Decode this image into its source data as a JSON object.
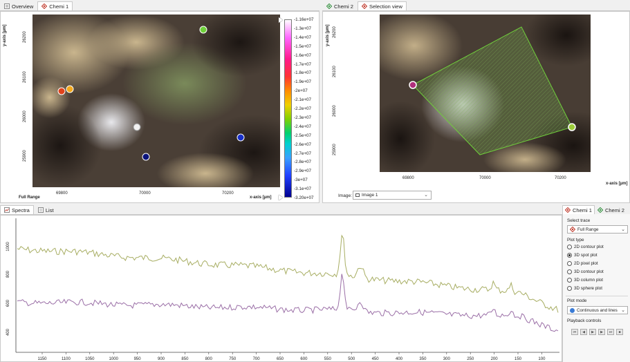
{
  "top_left": {
    "tabs": [
      {
        "label": "Overview"
      },
      {
        "label": "Chemi 1"
      }
    ],
    "y_axis_label": "y-axis [µm]",
    "x_axis_label": "x-axis [µm]",
    "y_ticks": [
      "26200",
      "26100",
      "26000",
      "25900"
    ],
    "x_ticks": [
      "69800",
      "70000",
      "70200"
    ],
    "full_range_label": "Full Range",
    "colorbar_labels": [
      "-1.16e+07",
      "-1.3e+07",
      "-1.4e+07",
      "-1.5e+07",
      "-1.6e+07",
      "-1.7e+07",
      "-1.8e+07",
      "-1.9e+07",
      "-2e+07",
      "-2.1e+07",
      "-2.2e+07",
      "-2.3e+07",
      "-2.4e+07",
      "-2.5e+07",
      "-2.6e+07",
      "-2.7e+07",
      "-2.8e+07",
      "-2.9e+07",
      "-3e+07",
      "-3.1e+07",
      "-3.20e+07"
    ],
    "markers": [
      {
        "name": "green-marker",
        "color": "#6fd13a"
      },
      {
        "name": "red-marker",
        "color": "#e0431b"
      },
      {
        "name": "orange-marker",
        "color": "#f2a81d"
      },
      {
        "name": "white-marker",
        "color": "#f2f2f2"
      },
      {
        "name": "blue-marker",
        "color": "#1830c8"
      },
      {
        "name": "navy-marker",
        "color": "#0b137a"
      }
    ]
  },
  "top_right": {
    "tabs": [
      {
        "label": "Chemi 2"
      },
      {
        "label": "Selection view"
      }
    ],
    "y_axis_label": "y-axis [µm]",
    "x_axis_label": "x-axis [µm]",
    "y_ticks": [
      "26200",
      "26100",
      "26000",
      "25900"
    ],
    "x_ticks": [
      "69800",
      "70000",
      "70200"
    ],
    "image_label": "Image:",
    "image_value": "Image 1"
  },
  "spectra": {
    "tabs": [
      {
        "label": "Spectra"
      },
      {
        "label": "List"
      }
    ],
    "y_ticks": [
      "1000",
      "800",
      "600",
      "400"
    ],
    "x_ticks": [
      "1150",
      "1100",
      "1050",
      "1000",
      "950",
      "900",
      "850",
      "800",
      "750",
      "700",
      "650",
      "600",
      "550",
      "500",
      "450",
      "400",
      "350",
      "300",
      "250",
      "200",
      "150",
      "100"
    ],
    "series": [
      {
        "color": "#a7ad62"
      },
      {
        "color": "#9a6ea6"
      }
    ]
  },
  "controls": {
    "tabs": [
      {
        "label": "Chemi 1"
      },
      {
        "label": "Chemi 2"
      }
    ],
    "select_trace_label": "Select trace",
    "select_trace_value": "Full Range",
    "plot_type_label": "Plot type",
    "plot_types": [
      {
        "label": "2D contour plot",
        "selected": false
      },
      {
        "label": "3D spot plot",
        "selected": true
      },
      {
        "label": "2D pixel plot",
        "selected": false
      },
      {
        "label": "3D contour plot",
        "selected": false
      },
      {
        "label": "3D column plot",
        "selected": false
      },
      {
        "label": "3D sphere plot",
        "selected": false
      }
    ],
    "plot_mode_label": "Plot mode",
    "plot_mode_value": "Continuous and lines",
    "playback_label": "Playback controls"
  }
}
